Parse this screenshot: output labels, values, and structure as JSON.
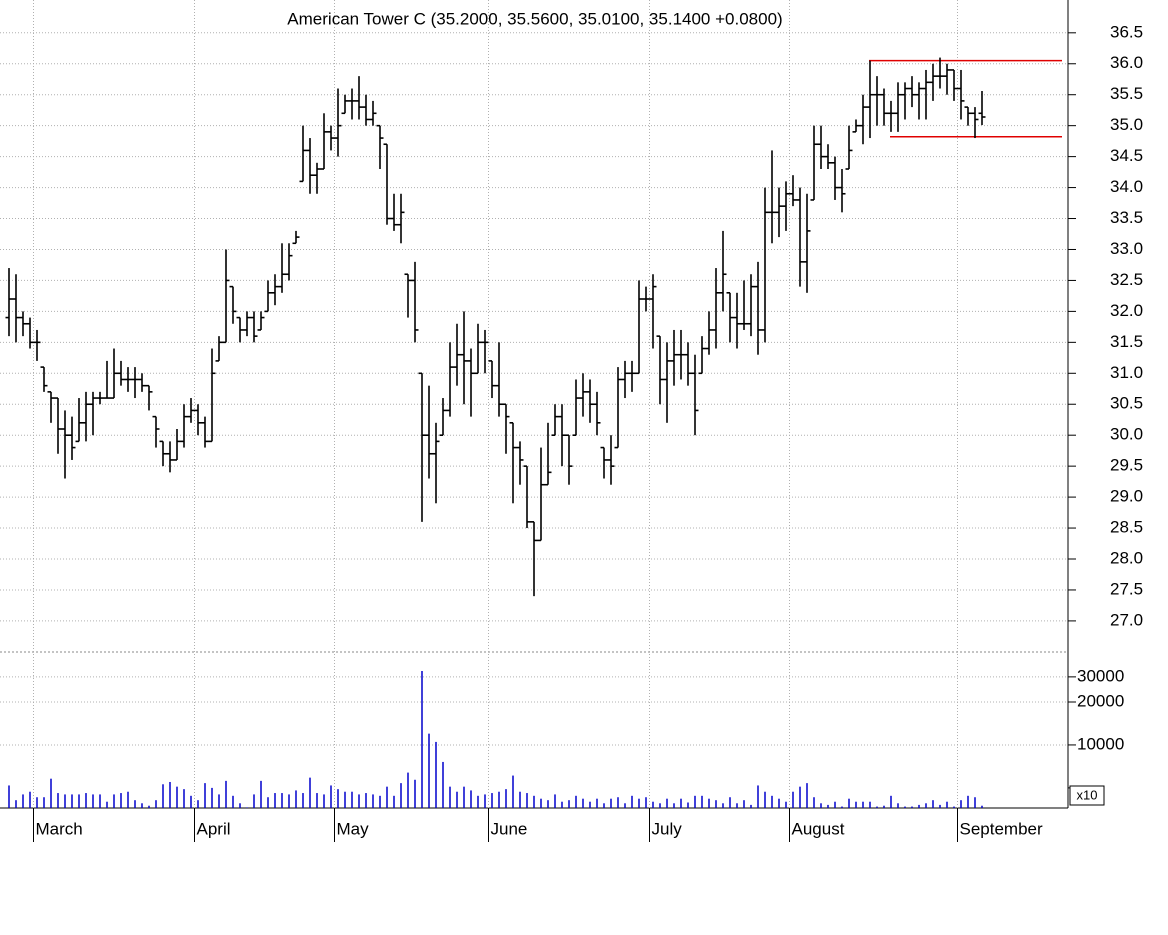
{
  "chart_data": {
    "type": "ohlc",
    "subtitle": "American Tower C (35.2000, 35.5600, 35.0100, 35.1400 +0.0800)",
    "categories": [
      null,
      null,
      null,
      null,
      "March",
      null,
      null,
      null,
      null,
      null,
      null,
      null,
      null,
      null,
      null,
      null,
      null,
      null,
      null,
      null,
      null,
      null,
      null,
      null,
      null,
      null,
      null,
      "April",
      null,
      null,
      null,
      null,
      null,
      null,
      null,
      null,
      null,
      null,
      null,
      null,
      null,
      null,
      null,
      null,
      null,
      null,
      null,
      "May",
      null,
      null,
      null,
      null,
      null,
      null,
      null,
      null,
      null,
      null,
      null,
      null,
      null,
      null,
      null,
      null,
      null,
      null,
      null,
      null,
      null,
      "June",
      null,
      null,
      null,
      null,
      null,
      null,
      null,
      null,
      null,
      null,
      null,
      null,
      null,
      null,
      null,
      null,
      null,
      null,
      null,
      null,
      null,
      null,
      "July",
      null,
      null,
      null,
      null,
      null,
      null,
      null,
      null,
      null,
      null,
      null,
      null,
      null,
      null,
      null,
      null,
      null,
      null,
      null,
      "August",
      null,
      null,
      null,
      null,
      null,
      null,
      null,
      null,
      null,
      null,
      null,
      null,
      null,
      null,
      null,
      null,
      null,
      null,
      null,
      null,
      null,
      null,
      null,
      "September",
      null,
      null,
      null
    ],
    "open": [
      31.9,
      32.2,
      31.9,
      31.8,
      31.5,
      31.1,
      30.7,
      30.6,
      30.1,
      30.0,
      29.9,
      30.2,
      30.5,
      30.6,
      30.6,
      30.6,
      31.0,
      30.9,
      30.9,
      30.9,
      30.8,
      30.3,
      29.9,
      29.7,
      29.6,
      29.9,
      30.3,
      30.4,
      30.2,
      29.9,
      31.2,
      31.5,
      32.4,
      31.9,
      31.7,
      31.9,
      31.7,
      32.0,
      32.3,
      32.4,
      32.6,
      33.1,
      34.1,
      34.6,
      34.2,
      34.3,
      34.9,
      34.8,
      35.2,
      35.4,
      35.4,
      35.3,
      35.1,
      35.0,
      34.7,
      33.5,
      33.4,
      32.6,
      32.5,
      31.0,
      30.0,
      29.7,
      30.0,
      30.4,
      31.1,
      31.3,
      31.2,
      31.0,
      31.5,
      31.2,
      30.8,
      30.5,
      30.2,
      29.8,
      29.5,
      28.6,
      28.3,
      29.2,
      30.0,
      30.3,
      30.0,
      30.0,
      30.6,
      30.7,
      30.5,
      29.8,
      29.6,
      29.8,
      30.9,
      31.0,
      31.0,
      32.2,
      32.2,
      31.6,
      30.9,
      31.2,
      31.3,
      31.3,
      31.0,
      31.0,
      31.4,
      31.7,
      32.3,
      32.3,
      31.9,
      31.8,
      31.8,
      32.4,
      31.7,
      33.6,
      33.6,
      33.7,
      33.9,
      33.8,
      32.8,
      33.8,
      34.7,
      34.5,
      34.4,
      34.0,
      34.3,
      34.9,
      35.0,
      35.3,
      35.5,
      35.5,
      35.2,
      35.2,
      35.5,
      35.6,
      35.5,
      35.6,
      35.7,
      35.8,
      35.8,
      35.9,
      35.6,
      35.3,
      35.2,
      35.2
    ],
    "high": [
      32.7,
      32.6,
      32.0,
      31.9,
      31.7,
      31.1,
      30.7,
      30.6,
      30.4,
      30.3,
      30.6,
      30.7,
      30.7,
      30.7,
      31.2,
      31.4,
      31.2,
      31.1,
      31.1,
      31.0,
      30.8,
      30.3,
      29.9,
      29.9,
      30.1,
      30.5,
      30.6,
      30.5,
      30.3,
      31.4,
      31.6,
      33.0,
      32.4,
      31.9,
      32.0,
      32.0,
      32.0,
      32.5,
      32.6,
      33.1,
      33.1,
      33.3,
      35.0,
      34.8,
      34.4,
      35.2,
      35.0,
      35.6,
      35.5,
      35.6,
      35.8,
      35.5,
      35.4,
      35.0,
      34.7,
      33.9,
      33.9,
      32.6,
      32.8,
      31.0,
      30.8,
      30.2,
      30.6,
      31.5,
      31.8,
      32.0,
      31.4,
      31.8,
      31.7,
      31.2,
      31.5,
      30.5,
      30.2,
      29.9,
      29.5,
      28.6,
      29.8,
      30.2,
      30.5,
      30.5,
      30.0,
      30.9,
      31.0,
      30.9,
      30.7,
      29.8,
      30.0,
      31.1,
      31.2,
      31.2,
      32.5,
      32.4,
      32.6,
      31.6,
      31.5,
      31.7,
      31.7,
      31.5,
      31.3,
      31.6,
      32.0,
      32.7,
      33.3,
      32.3,
      32.3,
      32.5,
      32.6,
      32.8,
      34.0,
      34.6,
      34.0,
      34.1,
      34.2,
      34.0,
      33.9,
      35.0,
      35.0,
      34.7,
      34.5,
      34.3,
      35.0,
      35.1,
      35.5,
      36.05,
      35.8,
      35.6,
      35.4,
      35.7,
      35.7,
      35.8,
      35.7,
      35.9,
      36.0,
      36.1,
      36.0,
      35.9,
      35.9,
      35.3,
      35.3,
      35.56
    ],
    "low": [
      31.6,
      31.5,
      31.6,
      31.4,
      31.2,
      30.7,
      30.2,
      29.7,
      29.3,
      29.6,
      29.9,
      29.9,
      30.0,
      30.5,
      30.6,
      30.6,
      30.8,
      30.7,
      30.6,
      30.7,
      30.4,
      29.8,
      29.5,
      29.4,
      29.6,
      29.8,
      30.2,
      30.0,
      29.8,
      29.9,
      31.2,
      31.5,
      31.8,
      31.5,
      31.6,
      31.5,
      31.7,
      32.0,
      32.1,
      32.3,
      32.5,
      33.1,
      34.1,
      33.9,
      33.9,
      34.3,
      34.6,
      34.5,
      35.2,
      35.1,
      35.1,
      35.0,
      35.0,
      34.3,
      33.4,
      33.3,
      33.1,
      31.9,
      31.5,
      28.6,
      29.3,
      28.9,
      30.0,
      30.3,
      30.8,
      30.5,
      30.3,
      31.0,
      31.0,
      30.6,
      30.3,
      29.7,
      28.9,
      29.2,
      28.5,
      27.4,
      28.3,
      29.2,
      30.0,
      29.5,
      29.2,
      30.0,
      30.3,
      30.2,
      30.0,
      29.3,
      29.2,
      29.8,
      30.6,
      30.7,
      31.0,
      32.0,
      31.4,
      30.5,
      30.2,
      30.8,
      30.9,
      30.8,
      30.0,
      31.0,
      31.3,
      31.4,
      32.0,
      31.5,
      31.4,
      31.7,
      31.6,
      31.3,
      31.5,
      33.1,
      33.2,
      33.3,
      33.7,
      32.4,
      32.3,
      33.8,
      34.3,
      34.3,
      33.8,
      33.6,
      34.3,
      34.9,
      34.7,
      34.8,
      35.0,
      35.0,
      34.9,
      34.9,
      35.1,
      35.3,
      35.1,
      35.1,
      35.4,
      35.6,
      35.5,
      35.4,
      35.1,
      35.0,
      34.8,
      35.01
    ],
    "close": [
      32.2,
      31.9,
      31.8,
      31.5,
      31.5,
      30.8,
      30.6,
      30.1,
      30.0,
      29.8,
      30.2,
      30.5,
      30.6,
      30.6,
      30.6,
      31.0,
      30.9,
      30.9,
      30.9,
      30.8,
      30.7,
      30.1,
      29.7,
      29.6,
      29.9,
      30.3,
      30.4,
      30.2,
      29.9,
      31.0,
      31.5,
      32.5,
      32.0,
      31.7,
      31.9,
      31.6,
      31.9,
      32.3,
      32.4,
      32.6,
      32.9,
      33.2,
      34.6,
      34.2,
      34.3,
      34.9,
      34.8,
      35.0,
      35.4,
      35.4,
      35.3,
      35.1,
      35.2,
      34.8,
      33.5,
      33.4,
      33.6,
      32.5,
      31.7,
      30.0,
      29.7,
      29.9,
      30.4,
      31.1,
      31.3,
      31.2,
      31.0,
      31.5,
      31.5,
      30.8,
      30.5,
      30.3,
      29.8,
      29.6,
      28.6,
      28.3,
      29.2,
      29.4,
      30.3,
      30.0,
      29.5,
      30.6,
      30.7,
      30.5,
      30.2,
      29.6,
      29.5,
      30.9,
      31.0,
      31.0,
      32.2,
      32.2,
      32.4,
      30.9,
      31.2,
      31.3,
      31.3,
      31.0,
      30.4,
      31.4,
      31.7,
      32.3,
      32.6,
      31.9,
      31.8,
      31.8,
      32.4,
      31.7,
      33.6,
      33.6,
      33.7,
      33.9,
      33.8,
      32.8,
      33.3,
      34.7,
      34.5,
      34.4,
      34.0,
      33.9,
      34.6,
      35.0,
      35.3,
      35.5,
      35.5,
      35.2,
      35.2,
      35.5,
      35.6,
      35.5,
      35.6,
      35.7,
      35.8,
      35.8,
      35.9,
      35.6,
      35.4,
      35.2,
      35.1,
      35.14
    ],
    "volume": [
      5200,
      4100,
      4500,
      4700,
      4300,
      4300,
      5800,
      4600,
      4500,
      4500,
      4500,
      4600,
      4500,
      4500,
      4000,
      4500,
      4600,
      4700,
      4100,
      3900,
      3750,
      4100,
      5300,
      5500,
      5100,
      4900,
      4400,
      4100,
      5400,
      5000,
      4500,
      5600,
      4400,
      3900,
      3650,
      4500,
      5600,
      4300,
      4600,
      4600,
      4500,
      4800,
      4600,
      5900,
      4600,
      4500,
      5200,
      4900,
      4700,
      4700,
      4500,
      4600,
      4500,
      4400,
      5100,
      4400,
      5400,
      6400,
      5700,
      33000,
      12000,
      10500,
      7600,
      5100,
      4700,
      5100,
      4800,
      4400,
      4500,
      4600,
      4700,
      4900,
      6100,
      4700,
      4600,
      4400,
      4200,
      4100,
      4500,
      4000,
      4100,
      4400,
      4200,
      4000,
      4200,
      3900,
      4200,
      4300,
      3900,
      4400,
      4200,
      4300,
      4000,
      3900,
      4200,
      3900,
      4200,
      3950,
      4400,
      4400,
      4200,
      4100,
      3900,
      4300,
      3900,
      4100,
      3800,
      5200,
      4700,
      4400,
      4200,
      4000,
      4700,
      5100,
      5400,
      4300,
      3900,
      3800,
      4000,
      3700,
      4200,
      4000,
      4000,
      4000,
      3700,
      3750,
      4400,
      3900,
      3700,
      3700,
      3800,
      3900,
      4100,
      3800,
      4000,
      3700,
      4100,
      4400,
      4300,
      3750
    ],
    "color": "#000000",
    "volume_color": "#0000cc",
    "ylim": [
      26.53,
      37.03
    ],
    "yticks": [
      {
        "value": 27,
        "label": "27.0"
      },
      27.5,
      {
        "value": 28,
        "label": "28.0"
      },
      28.5,
      {
        "value": 29,
        "label": "29.0"
      },
      29.5,
      {
        "value": 30,
        "label": "30.0"
      },
      30.5,
      {
        "value": 31,
        "label": "31.0"
      },
      31.5,
      {
        "value": 32,
        "label": "32.0"
      },
      32.5,
      {
        "value": 33,
        "label": "33.0"
      },
      33.5,
      {
        "value": 34,
        "label": "34.0"
      },
      34.5,
      {
        "value": 35,
        "label": "35.0"
      },
      35.5,
      {
        "value": 36,
        "label": "36.0"
      },
      36.5
    ],
    "volume_ylim": [
      3614,
      42700
    ],
    "volume_log": true,
    "volume_yticks": [
      10000,
      20000,
      30000
    ],
    "volume_minor_ticks": [
      5000
    ],
    "volume_multiplier_label": "x10",
    "grid": true,
    "annotations": [
      {
        "value": 36.05,
        "start": 123,
        "color": "#e00000"
      },
      {
        "value": 34.82,
        "start": 126,
        "color": "#e00000"
      }
    ]
  }
}
